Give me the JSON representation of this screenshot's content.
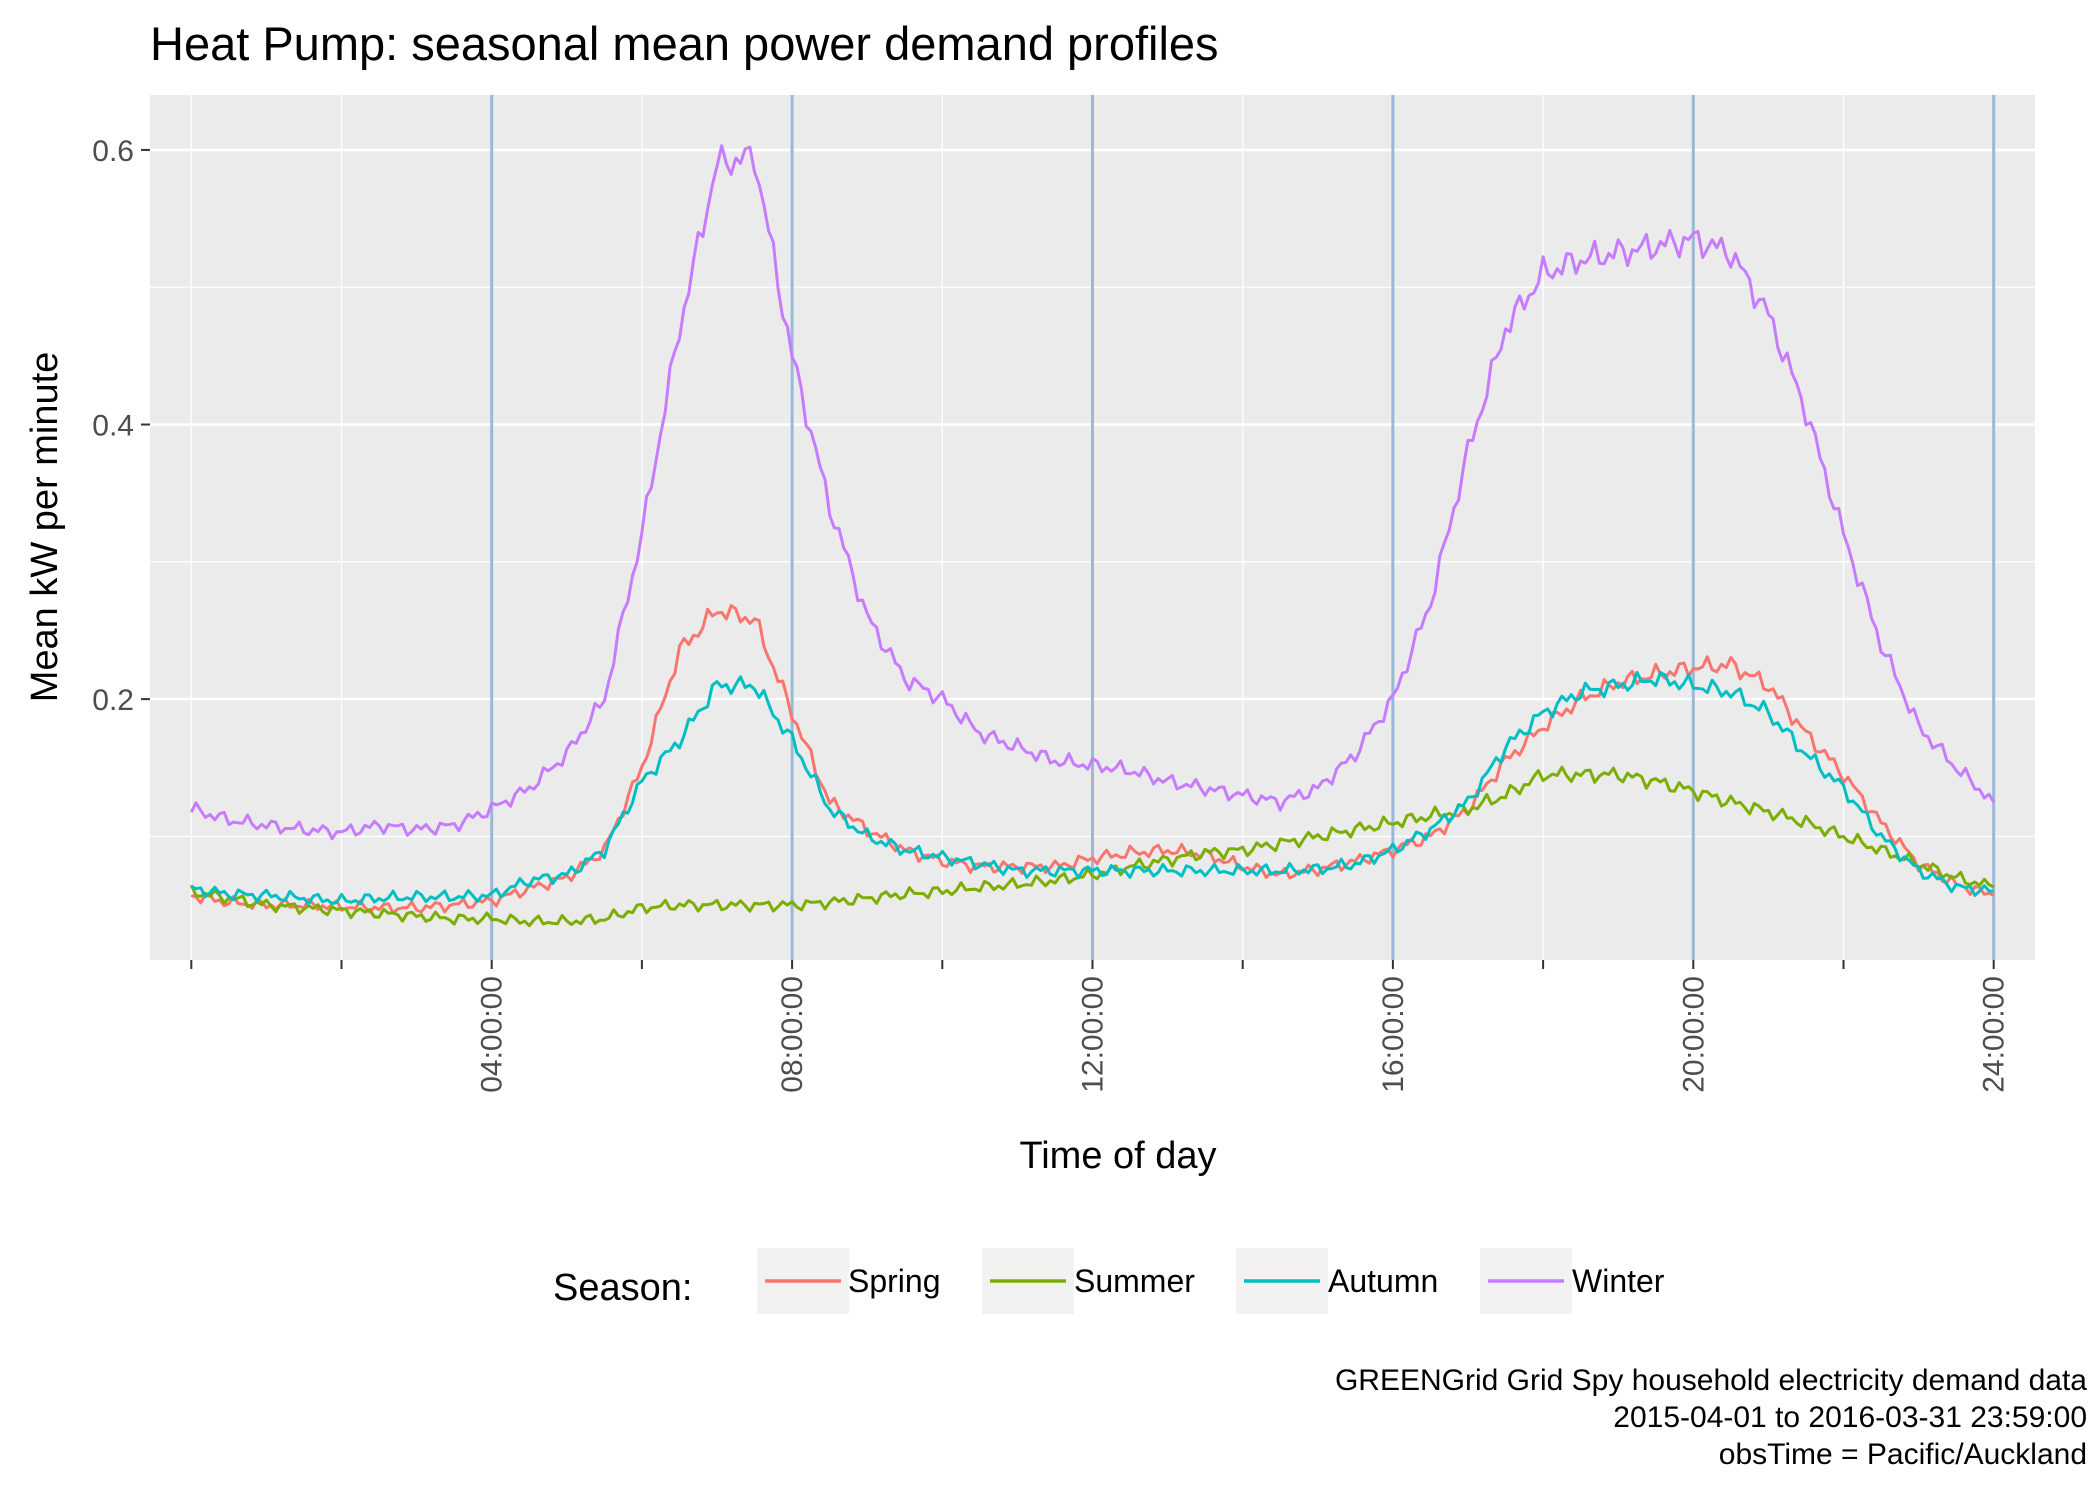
{
  "chart_data": {
    "type": "line",
    "title": "Heat Pump: seasonal mean power demand profiles",
    "xlabel": "Time of day",
    "ylabel": "Mean kW per minute",
    "x_unit": "hours",
    "xlim": [
      -0.55,
      24.55
    ],
    "ylim": [
      0.01,
      0.64
    ],
    "y_ticks": [
      0.2,
      0.4,
      0.6
    ],
    "y_tick_labels": [
      "0.2",
      "0.4",
      "0.6"
    ],
    "y_minor_ticks": [
      0.1,
      0.3,
      0.5
    ],
    "x_ticks": [
      4,
      8,
      12,
      16,
      20,
      24
    ],
    "x_tick_labels": [
      "04:00:00",
      "08:00:00",
      "12:00:00",
      "16:00:00",
      "20:00:00",
      "24:00:00"
    ],
    "x_minor_gridlines": [
      0,
      2,
      6,
      10,
      14,
      18,
      22
    ],
    "vertical_reference_lines": [
      4,
      8,
      12,
      16,
      20,
      24
    ],
    "reference_line_color": "#9ab9d9",
    "grid": true,
    "legend": {
      "title": "Season:",
      "position": "bottom"
    },
    "x": [
      0,
      0.5,
      1,
      1.5,
      2,
      2.5,
      3,
      3.5,
      4,
      4.5,
      5,
      5.5,
      6,
      6.5,
      7,
      7.5,
      8,
      8.5,
      9,
      9.5,
      10,
      10.5,
      11,
      11.5,
      12,
      12.5,
      13,
      13.5,
      14,
      14.5,
      15,
      15.5,
      16,
      16.5,
      17,
      17.5,
      18,
      18.5,
      19,
      19.5,
      20,
      20.5,
      21,
      21.5,
      22,
      22.5,
      23,
      23.5,
      24
    ],
    "series": [
      {
        "name": "Spring",
        "color": "#f8766d",
        "values": [
          0.057,
          0.052,
          0.05,
          0.05,
          0.049,
          0.048,
          0.048,
          0.05,
          0.053,
          0.062,
          0.07,
          0.09,
          0.15,
          0.235,
          0.265,
          0.258,
          0.19,
          0.125,
          0.105,
          0.09,
          0.082,
          0.078,
          0.078,
          0.078,
          0.084,
          0.088,
          0.09,
          0.087,
          0.078,
          0.072,
          0.076,
          0.082,
          0.09,
          0.1,
          0.12,
          0.155,
          0.18,
          0.2,
          0.212,
          0.218,
          0.223,
          0.225,
          0.21,
          0.175,
          0.145,
          0.11,
          0.08,
          0.065,
          0.057
        ]
      },
      {
        "name": "Summer",
        "color": "#7cae00",
        "values": [
          0.06,
          0.055,
          0.05,
          0.048,
          0.046,
          0.044,
          0.042,
          0.04,
          0.04,
          0.038,
          0.038,
          0.04,
          0.048,
          0.05,
          0.05,
          0.05,
          0.05,
          0.052,
          0.055,
          0.058,
          0.06,
          0.063,
          0.065,
          0.068,
          0.072,
          0.078,
          0.083,
          0.088,
          0.09,
          0.095,
          0.1,
          0.105,
          0.11,
          0.115,
          0.12,
          0.13,
          0.145,
          0.145,
          0.145,
          0.14,
          0.133,
          0.125,
          0.118,
          0.11,
          0.1,
          0.09,
          0.08,
          0.07,
          0.063
        ]
      },
      {
        "name": "Autumn",
        "color": "#00bfc4",
        "values": [
          0.062,
          0.058,
          0.057,
          0.055,
          0.053,
          0.055,
          0.056,
          0.056,
          0.057,
          0.068,
          0.072,
          0.09,
          0.14,
          0.17,
          0.21,
          0.21,
          0.17,
          0.12,
          0.1,
          0.09,
          0.085,
          0.08,
          0.075,
          0.075,
          0.075,
          0.075,
          0.075,
          0.075,
          0.075,
          0.075,
          0.076,
          0.08,
          0.09,
          0.105,
          0.125,
          0.165,
          0.19,
          0.205,
          0.21,
          0.215,
          0.21,
          0.205,
          0.19,
          0.16,
          0.135,
          0.1,
          0.075,
          0.063,
          0.06
        ]
      },
      {
        "name": "Winter",
        "color": "#c77cff",
        "values": [
          0.12,
          0.112,
          0.108,
          0.105,
          0.103,
          0.108,
          0.105,
          0.108,
          0.12,
          0.135,
          0.16,
          0.2,
          0.32,
          0.47,
          0.59,
          0.595,
          0.45,
          0.34,
          0.26,
          0.215,
          0.2,
          0.175,
          0.165,
          0.155,
          0.152,
          0.148,
          0.14,
          0.135,
          0.13,
          0.125,
          0.135,
          0.16,
          0.2,
          0.27,
          0.38,
          0.47,
          0.51,
          0.52,
          0.525,
          0.53,
          0.535,
          0.525,
          0.48,
          0.41,
          0.32,
          0.24,
          0.18,
          0.15,
          0.125
        ]
      }
    ],
    "caption": [
      "GREENGrid Grid Spy household electricity demand data",
      "2015-04-01 to 2016-03-31 23:59:00",
      "obsTime = Pacific/Auckland"
    ]
  }
}
